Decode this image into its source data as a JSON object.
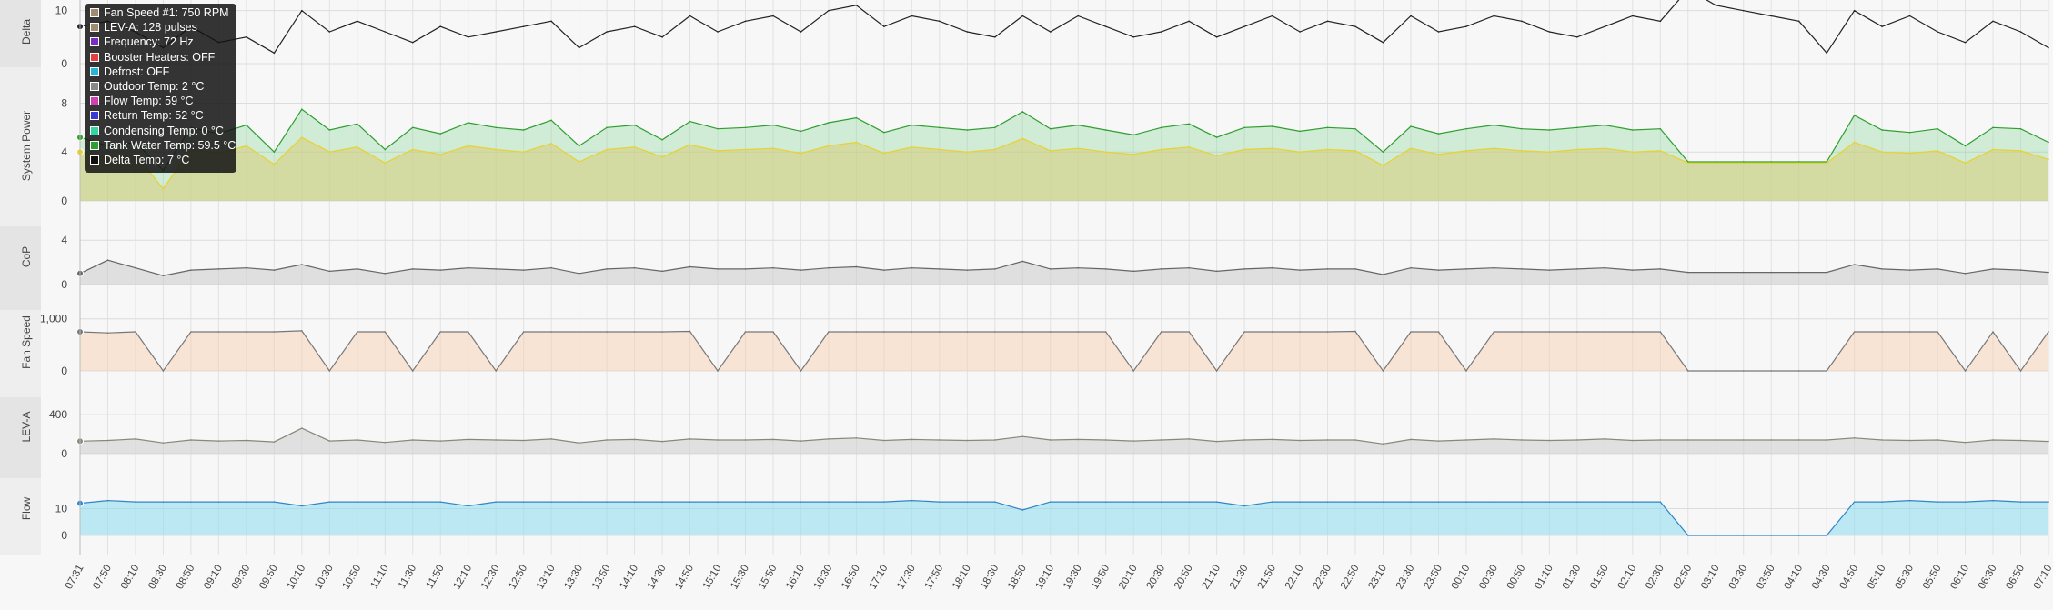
{
  "tooltip": {
    "items": [
      {
        "label": "Fan Speed #1: 750 RPM",
        "color": "#a08c70"
      },
      {
        "label": "LEV-A: 128 pulses",
        "color": "#a08c70"
      },
      {
        "label": "Frequency: 72 Hz",
        "color": "#7b2fbf"
      },
      {
        "label": "Booster Heaters: OFF",
        "color": "#e04040"
      },
      {
        "label": "Defrost: OFF",
        "color": "#29b6d6"
      },
      {
        "label": "Outdoor Temp: 2 °C",
        "color": "#888888"
      },
      {
        "label": "Flow Temp: 59 °C",
        "color": "#d13fb5"
      },
      {
        "label": "Return Temp: 52 °C",
        "color": "#3a3ad6"
      },
      {
        "label": "Condensing Temp: 0 °C",
        "color": "#33d6a0"
      },
      {
        "label": "Tank Water Temp: 59.5 °C",
        "color": "#2e9e2e"
      },
      {
        "label": "Delta Temp: 7 °C",
        "color": "#111111"
      }
    ]
  },
  "chart_data": [
    {
      "type": "line",
      "ylabel": "Delta",
      "ylim": [
        0,
        12
      ],
      "yticks": [
        {
          "v": 0,
          "label": "0"
        },
        {
          "v": 10,
          "label": "10"
        }
      ],
      "color": "#222222",
      "fill": null,
      "x": [
        "07:31",
        "07:50",
        "08:10",
        "08:30",
        "08:50",
        "09:10",
        "09:30",
        "09:50",
        "10:10",
        "10:30",
        "10:50",
        "11:10",
        "11:30",
        "11:50",
        "12:10",
        "12:30",
        "12:50",
        "13:10",
        "13:30",
        "13:50",
        "14:10",
        "14:30",
        "14:50",
        "15:10",
        "15:30",
        "15:50",
        "16:10",
        "16:30",
        "16:50",
        "17:10",
        "17:30",
        "17:50",
        "18:10",
        "18:30",
        "18:50",
        "19:10",
        "19:30",
        "19:50",
        "20:10",
        "20:30",
        "20:50",
        "21:10",
        "21:30",
        "21:50",
        "22:10",
        "22:30",
        "22:50",
        "23:10",
        "23:30",
        "23:50",
        "00:10",
        "00:30",
        "00:50",
        "01:10",
        "01:30",
        "01:50",
        "02:10",
        "02:30",
        "02:50",
        "03:10",
        "03:30",
        "03:50",
        "04:10",
        "04:30",
        "04:50",
        "05:10",
        "05:30",
        "05:50",
        "06:10",
        "06:30",
        "06:50",
        "07:10"
      ],
      "values": [
        7,
        8,
        6,
        3,
        7,
        4,
        5,
        2,
        10,
        6,
        8,
        6,
        4,
        7,
        5,
        6,
        7,
        8,
        3,
        6,
        7,
        5,
        9,
        6,
        8,
        9,
        6,
        10,
        11,
        7,
        9,
        8,
        6,
        5,
        9,
        6,
        9,
        7,
        5,
        6,
        8,
        5,
        7,
        9,
        6,
        8,
        7,
        4,
        9,
        6,
        7,
        9,
        8,
        6,
        5,
        7,
        9,
        8,
        14,
        11,
        10,
        9,
        8,
        2,
        10,
        7,
        9,
        6,
        4,
        8,
        6,
        3
      ]
    },
    {
      "type": "area",
      "ylabel": "System Power",
      "ylim": [
        0,
        9
      ],
      "yticks": [
        {
          "v": 0,
          "label": "0"
        },
        {
          "v": 4,
          "label": "4"
        },
        {
          "v": 8,
          "label": "8"
        }
      ],
      "series": [
        {
          "color": "#2e9e2e",
          "fill": "rgba(120,210,140,0.30)",
          "values": [
            5.2,
            4.5,
            4.8,
            2.5,
            6.0,
            5.5,
            6.2,
            4.0,
            7.5,
            5.8,
            6.3,
            4.2,
            6.0,
            5.5,
            6.4,
            6.0,
            5.8,
            6.6,
            4.5,
            6.0,
            6.2,
            5.0,
            6.5,
            5.9,
            6.0,
            6.2,
            5.7,
            6.4,
            6.8,
            5.6,
            6.2,
            6.0,
            5.8,
            6.0,
            7.3,
            5.9,
            6.2,
            5.8,
            5.4,
            6.0,
            6.3,
            5.2,
            6.0,
            6.1,
            5.7,
            6.0,
            5.9,
            4.0,
            6.1,
            5.5,
            5.9,
            6.2,
            5.9,
            5.8,
            6.0,
            6.2,
            5.8,
            5.9,
            3.2,
            3.2,
            3.2,
            3.2,
            3.2,
            3.2,
            7.0,
            5.8,
            5.6,
            5.9,
            4.5,
            6.0,
            5.9,
            4.8
          ]
        },
        {
          "color": "#e8d22e",
          "fill": "rgba(215,205,120,0.55)",
          "values": [
            4.0,
            3.5,
            3.8,
            1.0,
            4.2,
            3.9,
            4.5,
            3.0,
            5.2,
            4.0,
            4.4,
            3.1,
            4.2,
            3.8,
            4.5,
            4.2,
            4.0,
            4.7,
            3.2,
            4.2,
            4.4,
            3.6,
            4.6,
            4.1,
            4.2,
            4.3,
            3.9,
            4.5,
            4.8,
            3.9,
            4.4,
            4.2,
            4.0,
            4.2,
            5.1,
            4.1,
            4.3,
            4.0,
            3.8,
            4.2,
            4.4,
            3.7,
            4.2,
            4.3,
            4.0,
            4.2,
            4.1,
            2.9,
            4.3,
            3.8,
            4.1,
            4.3,
            4.1,
            4.0,
            4.2,
            4.3,
            4.0,
            4.1,
            3.1,
            3.1,
            3.1,
            3.1,
            3.1,
            3.1,
            4.8,
            4.0,
            3.9,
            4.1,
            3.1,
            4.2,
            4.1,
            3.4
          ]
        }
      ]
    },
    {
      "type": "area",
      "ylabel": "CoP",
      "ylim": [
        0,
        5
      ],
      "yticks": [
        {
          "v": 0,
          "label": "0"
        },
        {
          "v": 4,
          "label": "4"
        }
      ],
      "color": "#666666",
      "fill": "rgba(200,200,200,0.5)",
      "values": [
        1.0,
        2.2,
        1.5,
        0.8,
        1.3,
        1.4,
        1.5,
        1.3,
        1.8,
        1.2,
        1.4,
        1.0,
        1.4,
        1.3,
        1.5,
        1.4,
        1.3,
        1.5,
        1.0,
        1.4,
        1.5,
        1.2,
        1.6,
        1.4,
        1.4,
        1.5,
        1.3,
        1.5,
        1.6,
        1.3,
        1.5,
        1.4,
        1.3,
        1.4,
        2.1,
        1.4,
        1.5,
        1.4,
        1.2,
        1.4,
        1.5,
        1.2,
        1.4,
        1.5,
        1.3,
        1.4,
        1.4,
        0.9,
        1.5,
        1.3,
        1.4,
        1.5,
        1.4,
        1.3,
        1.4,
        1.5,
        1.3,
        1.4,
        1.1,
        1.1,
        1.1,
        1.1,
        1.1,
        1.1,
        1.8,
        1.4,
        1.3,
        1.4,
        1.0,
        1.4,
        1.3,
        1.1
      ]
    },
    {
      "type": "area",
      "ylabel": "Fan Speed",
      "ylim": [
        0,
        1100
      ],
      "yticks": [
        {
          "v": 0,
          "label": "0"
        },
        {
          "v": 1000,
          "label": "1,000"
        }
      ],
      "color": "#777777",
      "fill": "rgba(246,205,170,0.45)",
      "values": [
        750,
        730,
        750,
        0,
        750,
        750,
        750,
        750,
        770,
        0,
        750,
        750,
        0,
        750,
        750,
        0,
        750,
        750,
        750,
        750,
        750,
        750,
        760,
        0,
        750,
        750,
        0,
        750,
        750,
        750,
        750,
        750,
        750,
        750,
        750,
        750,
        750,
        750,
        0,
        750,
        750,
        0,
        750,
        750,
        750,
        750,
        760,
        0,
        750,
        750,
        0,
        750,
        750,
        750,
        750,
        750,
        750,
        750,
        0,
        0,
        0,
        0,
        0,
        0,
        750,
        750,
        750,
        750,
        0,
        750,
        0,
        750
      ]
    },
    {
      "type": "area",
      "ylabel": "LEV-A",
      "ylim": [
        0,
        550
      ],
      "yticks": [
        {
          "v": 0,
          "label": "0"
        },
        {
          "v": 400,
          "label": "400"
        }
      ],
      "color": "#888877",
      "fill": "rgba(205,205,205,0.55)",
      "values": [
        128,
        135,
        150,
        110,
        140,
        130,
        135,
        120,
        260,
        130,
        140,
        115,
        140,
        130,
        145,
        140,
        135,
        150,
        110,
        140,
        145,
        125,
        150,
        140,
        140,
        145,
        130,
        150,
        160,
        135,
        145,
        140,
        135,
        140,
        175,
        140,
        145,
        140,
        130,
        140,
        150,
        125,
        140,
        145,
        135,
        140,
        140,
        100,
        145,
        130,
        140,
        150,
        140,
        135,
        140,
        150,
        135,
        140,
        140,
        140,
        140,
        140,
        140,
        140,
        160,
        140,
        135,
        140,
        115,
        140,
        135,
        125
      ]
    },
    {
      "type": "area",
      "ylabel": "Flow",
      "ylim": [
        0,
        20
      ],
      "yticks": [
        {
          "v": 0,
          "label": "0"
        },
        {
          "v": 10,
          "label": "10"
        }
      ],
      "color": "#2f86c8",
      "fill": "rgba(140,220,240,0.55)",
      "values": [
        12,
        13,
        12.5,
        12.5,
        12.5,
        12.5,
        12.5,
        12.5,
        11,
        12.5,
        12.5,
        12.5,
        12.5,
        12.5,
        11,
        12.5,
        12.5,
        12.5,
        12.5,
        12.5,
        12.5,
        12.5,
        12.5,
        12.5,
        12.5,
        12.5,
        12.5,
        12.5,
        12.5,
        12.5,
        13,
        12.5,
        12.5,
        12.5,
        9.5,
        12.5,
        12.5,
        12.5,
        12.5,
        12.5,
        12.5,
        12.5,
        11,
        12.5,
        12.5,
        12.5,
        12.5,
        12.5,
        12.5,
        12.5,
        12.5,
        12.5,
        12.5,
        12.5,
        12.5,
        12.5,
        12.5,
        12.5,
        0,
        0,
        0,
        0,
        0,
        0,
        12.5,
        12.5,
        13,
        12.5,
        12.5,
        13,
        12.5,
        12.5
      ]
    }
  ]
}
